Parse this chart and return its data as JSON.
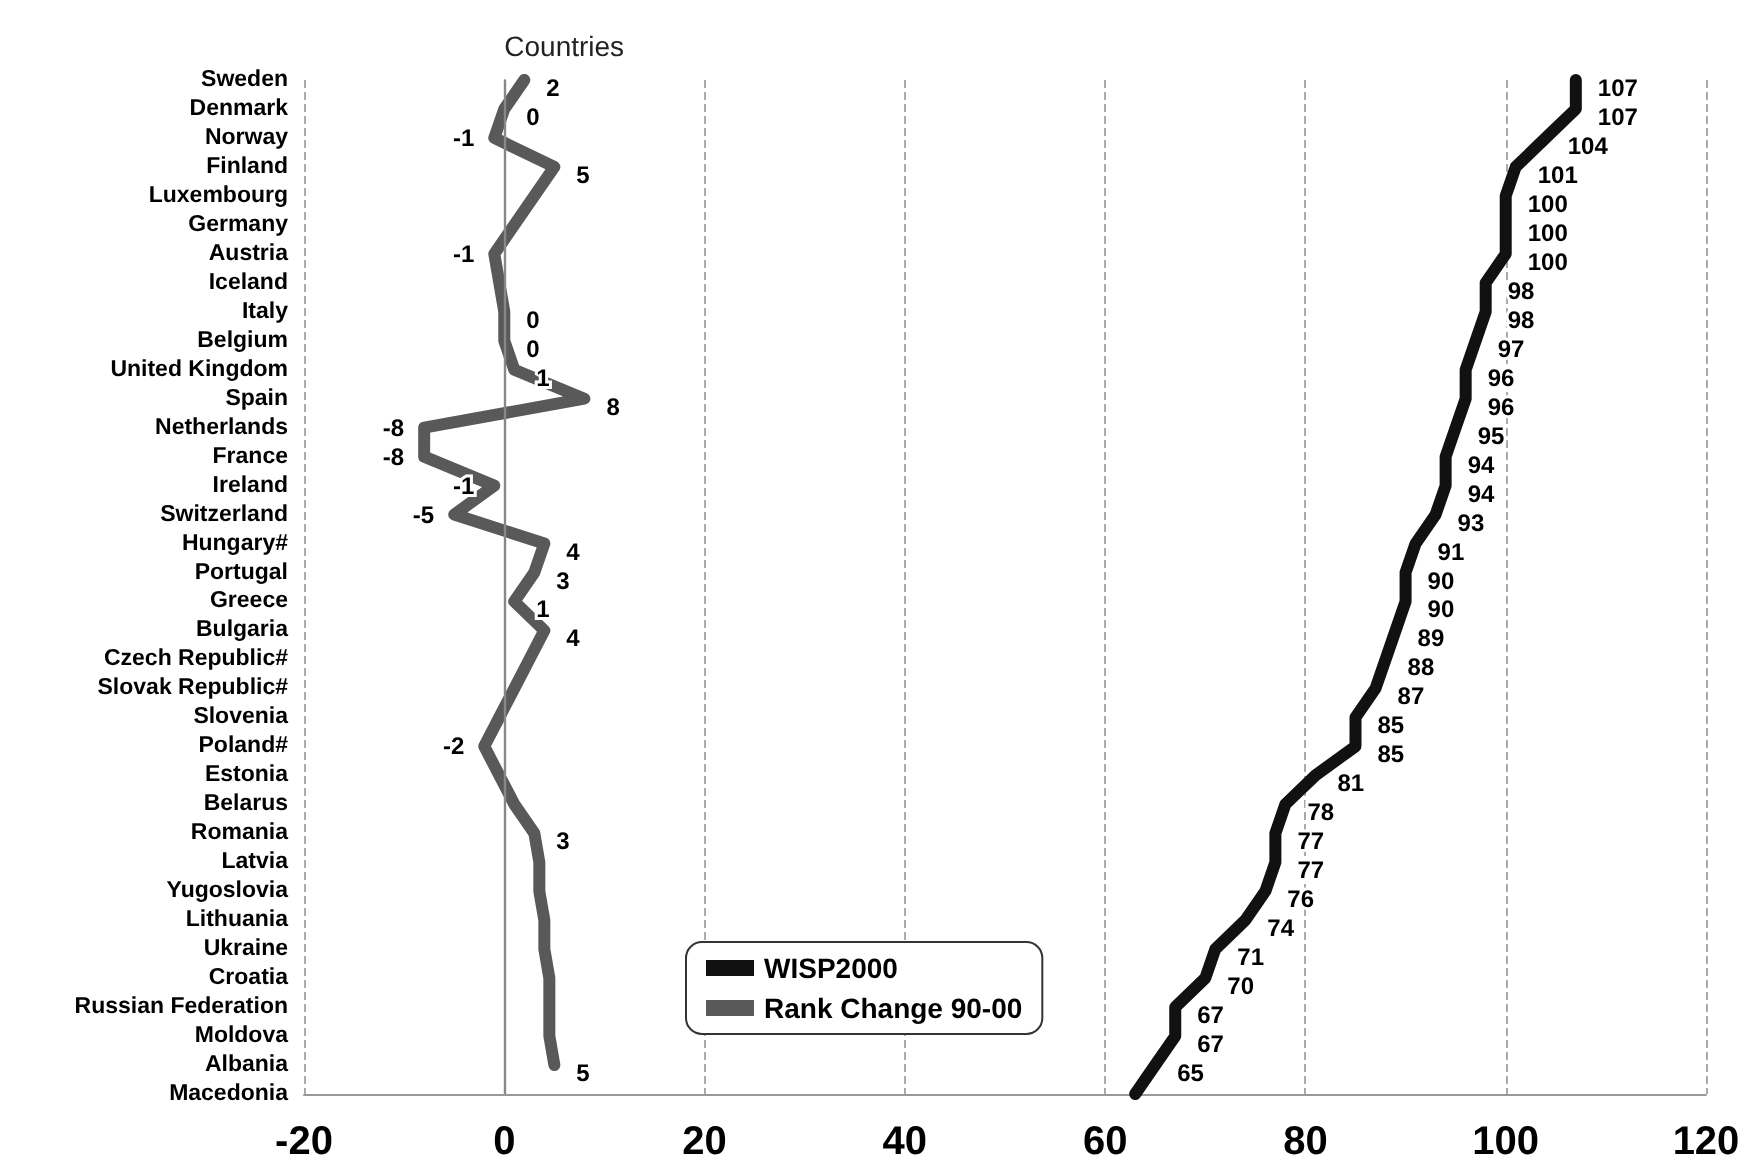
{
  "chart_data": {
    "type": "line",
    "orientation": "horizontal",
    "ylabel": "Countries",
    "categories": [
      "Sweden",
      "Denmark",
      "Norway",
      "Finland",
      "Luxembourg",
      "Germany",
      "Austria",
      "Iceland",
      "Italy",
      "Belgium",
      "United Kingdom",
      "Spain",
      "Netherlands",
      "France",
      "Ireland",
      "Switzerland",
      "Hungary#",
      "Portugal",
      "Greece",
      "Bulgaria",
      "Czech Republic#",
      "Slovak Republic#",
      "Slovenia",
      "Poland#",
      "Estonia",
      "Belarus",
      "Romania",
      "Latvia",
      "Yugoslovia",
      "Lithuania",
      "Ukraine",
      "Croatia",
      "Russian Federation",
      "Moldova",
      "Albania",
      "Macedonia"
    ],
    "series": [
      {
        "name": "WISP2000",
        "color": "#111111",
        "values": [
          107,
          107,
          104,
          101,
          100,
          100,
          100,
          98,
          98,
          97,
          96,
          96,
          95,
          94,
          94,
          93,
          91,
          90,
          90,
          89,
          88,
          87,
          85,
          85,
          81,
          78,
          77,
          77,
          76,
          74,
          71,
          70,
          67,
          67,
          65,
          63
        ],
        "value_labels": [
          "107",
          "107",
          "104",
          "101",
          "100",
          "100",
          "100",
          "98",
          "98",
          "97",
          "96",
          "96",
          "95",
          "94",
          "94",
          "93",
          "91",
          "90",
          "90",
          "89",
          "88",
          "87",
          "85",
          "85",
          "81",
          "78",
          "77",
          "77",
          "76",
          "74",
          "71",
          "70",
          "67",
          "67",
          "65",
          null
        ]
      },
      {
        "name": "Rank Change 90-00",
        "color": "#595959",
        "values": [
          2,
          0,
          -1,
          5,
          3,
          1,
          -1,
          -0.5,
          0,
          0,
          1,
          8,
          -8,
          -8,
          -1,
          -5,
          4,
          3,
          1,
          4,
          2.5,
          1,
          -0.5,
          -2,
          -0.5,
          1,
          3,
          3.5,
          3.5,
          4,
          4,
          4.5,
          4.5,
          4.5,
          5,
          null
        ],
        "value_labels": [
          "2",
          "0",
          "-1",
          "5",
          null,
          null,
          "-1",
          null,
          "0",
          "0",
          "1",
          "8",
          "-8",
          "-8",
          "-1",
          "-5",
          "4",
          "3",
          "1",
          "4",
          null,
          null,
          null,
          "-2",
          null,
          null,
          "3",
          null,
          null,
          null,
          null,
          null,
          null,
          null,
          "5",
          null
        ]
      }
    ],
    "xlim": [
      -20,
      120
    ],
    "xticks": [
      -20,
      0,
      20,
      40,
      60,
      80,
      100,
      120
    ],
    "grid": "x",
    "legend": "bottom",
    "marker": "none",
    "line_style": "solid",
    "ref_lines": [
      {
        "axis": "x",
        "value": 0,
        "color": "#888888"
      }
    ]
  }
}
